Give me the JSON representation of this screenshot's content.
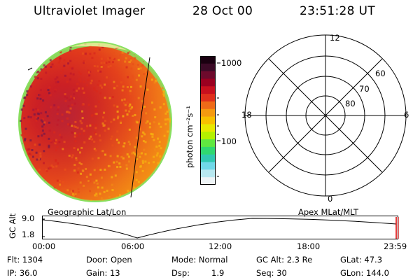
{
  "header": {
    "instrument": "Ultraviolet Imager",
    "date": "28 Oct 00",
    "time": "23:51:28 UT"
  },
  "colorbar": {
    "unit_label": "photon cm⁻²s⁻¹",
    "ticks": [
      "1000",
      "100"
    ],
    "colors": [
      "#1a0010",
      "#3b0a26",
      "#6d0a2c",
      "#9a0020",
      "#c8101e",
      "#e0301c",
      "#ee6a18",
      "#f59a10",
      "#f8c000",
      "#e8e800",
      "#b4f000",
      "#60e840",
      "#30d870",
      "#30c8b0",
      "#70d8e8",
      "#b8e8f0",
      "#eef4f6"
    ]
  },
  "image_labels": {
    "left": "Geographic Lat/Lon",
    "right": "Apex MLat/MLT"
  },
  "polar_plot": {
    "mlt_labels": [
      "12",
      "18",
      "6",
      "0"
    ],
    "mlat_labels": [
      "60",
      "70",
      "80"
    ]
  },
  "altitude_plot": {
    "y_label": "GC Alt",
    "y_ticks": [
      "9.0",
      "1.8"
    ],
    "x_ticks": [
      "00:00",
      "06:00",
      "12:00",
      "18:00",
      "23:59"
    ]
  },
  "status": {
    "flt": "Flt: 1304",
    "ip": "IP: 36.0",
    "door": "Door: Open",
    "gain": "Gain: 13",
    "mode": "Mode: Normal",
    "dsp_label": "Dsp:",
    "dsp_value": "1.9",
    "gc_alt": "GC Alt: 2.3 Re",
    "seq": "Seq: 30",
    "glat": "GLat:  47.3",
    "glon": "GLon: 144.0"
  }
}
